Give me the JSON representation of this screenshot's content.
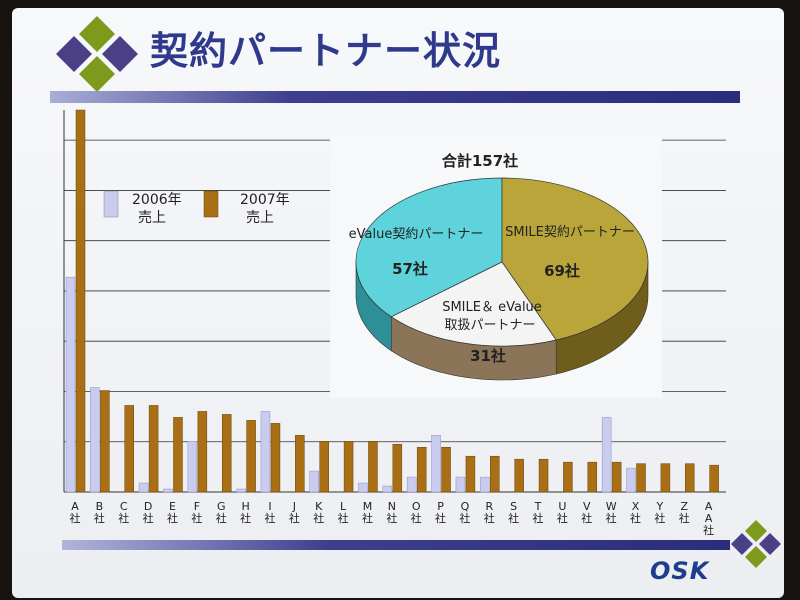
{
  "slide": {
    "title": "契約パートナー状況",
    "logo_text": "OSK"
  },
  "colors": {
    "series_2006": "#c9cbef",
    "series_2007": "#a86f14",
    "pie_evalue": "#5fd3dc",
    "pie_smile": "#b9a53a",
    "pie_both": "#f4f4f4",
    "accent_navy": "#2f3a8c",
    "diamond_green": "#7e9a1c",
    "diamond_purple": "#4b3f86"
  },
  "chart_data": [
    {
      "type": "bar",
      "categories": [
        "A社",
        "B社",
        "C社",
        "D社",
        "E社",
        "F社",
        "G社",
        "H社",
        "I社",
        "J社",
        "K社",
        "L社",
        "M社",
        "N社",
        "O社",
        "P社",
        "Q社",
        "R社",
        "S社",
        "T社",
        "U社",
        "V社",
        "W社",
        "X社",
        "Y社",
        "Z社",
        "AA社"
      ],
      "series": [
        {
          "name": "2006年売上",
          "values": [
            72,
            35,
            0,
            3,
            1,
            17,
            0,
            1,
            27,
            0,
            7,
            0,
            3,
            2,
            5,
            19,
            5,
            5,
            0,
            0,
            0,
            0,
            25,
            8,
            0,
            0,
            0
          ]
        },
        {
          "name": "2007年売上",
          "values": [
            128,
            34,
            29,
            29,
            25,
            27,
            26,
            24,
            23,
            19,
            17,
            17,
            17,
            16,
            15,
            15,
            12,
            12,
            11,
            11,
            10,
            10,
            10,
            9.5,
            9.5,
            9.5,
            9
          ]
        }
      ],
      "legend": [
        "2006年",
        "売上",
        "2007年",
        "売上"
      ],
      "legend_position": "top-left",
      "grid": true
    },
    {
      "type": "pie",
      "title": "合計157社",
      "slices": [
        {
          "label": "eValue契約パートナー",
          "value": 57,
          "value_label": "57社"
        },
        {
          "label": "SMILE契約パートナー",
          "value": 69,
          "value_label": "69社"
        },
        {
          "label_line1": "SMILE＆ eValue",
          "label_line2": "取扱パートナー",
          "value": 31,
          "value_label": "31社"
        }
      ]
    }
  ]
}
